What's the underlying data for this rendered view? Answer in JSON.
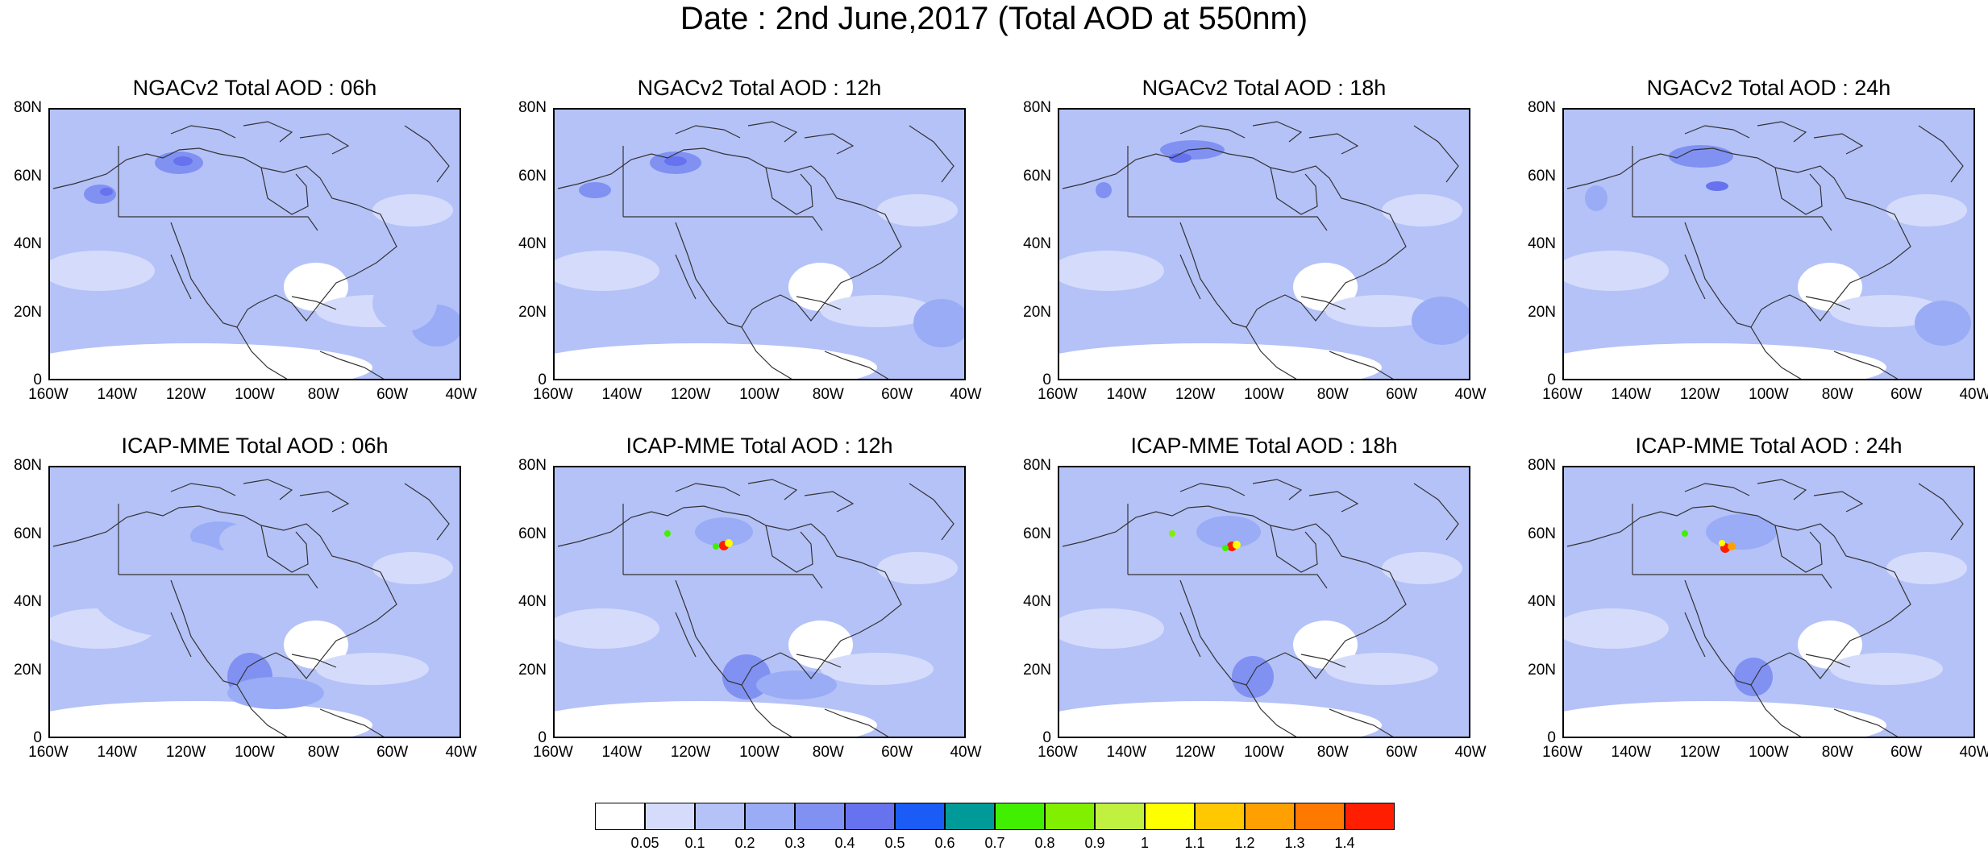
{
  "title": "Date : 2nd June,2017 (Total AOD at 550nm)",
  "y_tick_labels": [
    "80N",
    "60N",
    "40N",
    "20N",
    "0"
  ],
  "x_tick_labels": [
    "160W",
    "140W",
    "120W",
    "100W",
    "80W",
    "60W",
    "40W"
  ],
  "panels": [
    {
      "title": "NGACv2 Total AOD : 06h",
      "model": "NGACv2",
      "hour": "06h"
    },
    {
      "title": "NGACv2 Total AOD : 12h",
      "model": "NGACv2",
      "hour": "12h"
    },
    {
      "title": "NGACv2 Total AOD : 18h",
      "model": "NGACv2",
      "hour": "18h"
    },
    {
      "title": "NGACv2 Total AOD : 24h",
      "model": "NGACv2",
      "hour": "24h"
    },
    {
      "title": "ICAP-MME Total AOD : 06h",
      "model": "ICAP-MME",
      "hour": "06h"
    },
    {
      "title": "ICAP-MME Total AOD : 12h",
      "model": "ICAP-MME",
      "hour": "12h"
    },
    {
      "title": "ICAP-MME Total AOD : 18h",
      "model": "ICAP-MME",
      "hour": "18h"
    },
    {
      "title": "ICAP-MME Total AOD : 24h",
      "model": "ICAP-MME",
      "hour": "24h"
    }
  ],
  "colorbar": {
    "labels": [
      "0.05",
      "0.1",
      "0.2",
      "0.3",
      "0.4",
      "0.5",
      "0.6",
      "0.7",
      "0.8",
      "0.9",
      "1",
      "1.1",
      "1.2",
      "1.3",
      "1.4"
    ],
    "colors": [
      "#ffffff",
      "#d5dcfb",
      "#b5c2f8",
      "#9aacf5",
      "#8091f2",
      "#6672ee",
      "#1a5cf5",
      "#009b98",
      "#40f000",
      "#80f000",
      "#c0f040",
      "#ffff00",
      "#ffc800",
      "#ffa000",
      "#ff7800",
      "#ff1e00"
    ]
  }
}
